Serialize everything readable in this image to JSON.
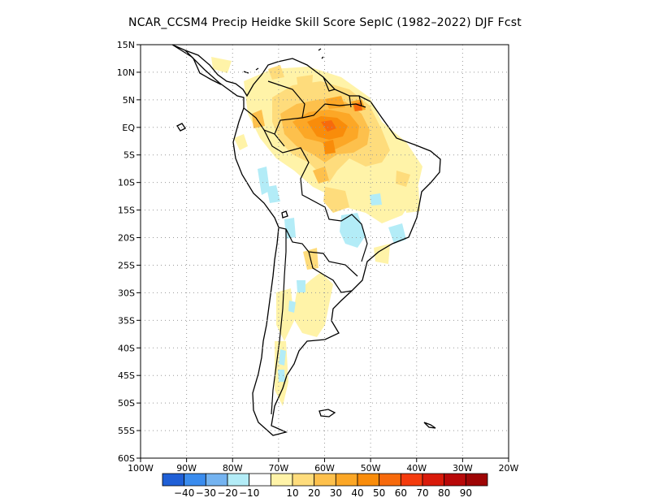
{
  "title": "NCAR_CCSM4 Precip Heidke Skill Score SepIC (1982–2022) DJF Fcst",
  "map": {
    "lon_range": [
      -100,
      -20
    ],
    "lat_range": [
      -60,
      15
    ],
    "lat_ticks": [
      {
        "value": 15,
        "label": "15N"
      },
      {
        "value": 10,
        "label": "10N"
      },
      {
        "value": 5,
        "label": "5N"
      },
      {
        "value": 0,
        "label": "EQ"
      },
      {
        "value": -5,
        "label": "5S"
      },
      {
        "value": -10,
        "label": "10S"
      },
      {
        "value": -15,
        "label": "15S"
      },
      {
        "value": -20,
        "label": "20S"
      },
      {
        "value": -25,
        "label": "25S"
      },
      {
        "value": -30,
        "label": "30S"
      },
      {
        "value": -35,
        "label": "35S"
      },
      {
        "value": -40,
        "label": "40S"
      },
      {
        "value": -45,
        "label": "45S"
      },
      {
        "value": -50,
        "label": "50S"
      },
      {
        "value": -55,
        "label": "55S"
      },
      {
        "value": -60,
        "label": "60S"
      }
    ],
    "lon_ticks": [
      {
        "value": -100,
        "label": "100W"
      },
      {
        "value": -90,
        "label": "90W"
      },
      {
        "value": -80,
        "label": "80W"
      },
      {
        "value": -70,
        "label": "70W"
      },
      {
        "value": -60,
        "label": "60W"
      },
      {
        "value": -50,
        "label": "50W"
      },
      {
        "value": -40,
        "label": "40W"
      },
      {
        "value": -30,
        "label": "30W"
      },
      {
        "value": -20,
        "label": "20W"
      }
    ],
    "gridlines": "dotted"
  },
  "colorbar": {
    "colors": [
      "#1f5fd6",
      "#3a8cee",
      "#74b3f0",
      "#b3ecf7",
      "#ffffff",
      "#fff3a8",
      "#fedc7c",
      "#fdc04c",
      "#fca726",
      "#f98c0a",
      "#f76a0c",
      "#f43b0d",
      "#d91a0a",
      "#b80808",
      "#9e0505"
    ],
    "labels": [
      "-40",
      "-30",
      "-20",
      "-10",
      "10",
      "20",
      "30",
      "40",
      "50",
      "60",
      "70",
      "80",
      "90"
    ]
  },
  "fill_colors": {
    "c10": "#fff3a8",
    "c20": "#fedc7c",
    "c30": "#fdc04c",
    "c40": "#fca726",
    "c50": "#f98c0a",
    "c60": "#f76a0c",
    "n10": "#b3ecf7"
  }
}
